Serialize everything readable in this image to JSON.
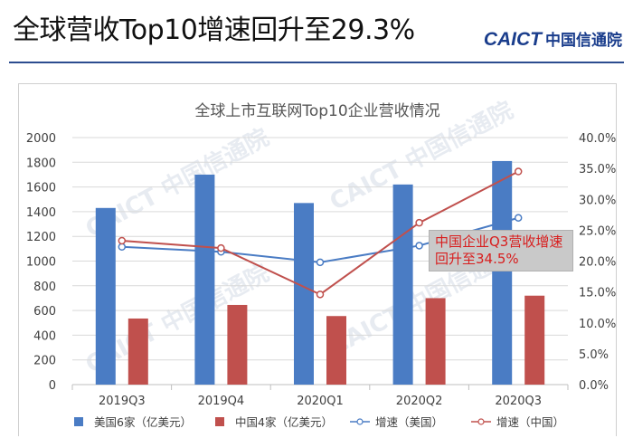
{
  "header": {
    "title": "全球营收Top10增速回升至29.3%",
    "logo_mark": "CAICT",
    "logo_name": "中国信通院",
    "brand_color": "#1a3d8c"
  },
  "watermark": {
    "text": "CAICT 中国信通院"
  },
  "callout": {
    "text": "中国企业Q3营收增速回升至34.5%"
  },
  "chart_data": {
    "type": "bar",
    "title": "全球上市互联网Top10企业营收情况",
    "categories": [
      "2019Q3",
      "2019Q4",
      "2020Q1",
      "2020Q2",
      "2020Q3"
    ],
    "series": [
      {
        "name": "美国6家（亿美元）",
        "kind": "bar",
        "axis": "left",
        "color": "#4a7cc4",
        "values": [
          1430,
          1700,
          1470,
          1620,
          1810
        ]
      },
      {
        "name": "中国4家（亿美元）",
        "kind": "bar",
        "axis": "left",
        "color": "#c0504d",
        "values": [
          535,
          645,
          555,
          700,
          720
        ]
      },
      {
        "name": "增速（美国）",
        "kind": "line",
        "axis": "right",
        "color": "#4a7cc4",
        "values": [
          22.3,
          21.5,
          19.8,
          22.5,
          27.0
        ]
      },
      {
        "name": "增速（中国）",
        "kind": "line",
        "axis": "right",
        "color": "#c0504d",
        "values": [
          23.3,
          22.1,
          14.6,
          26.2,
          34.5
        ]
      }
    ],
    "y_left": {
      "min": 0,
      "max": 2000,
      "ticks": [
        "0",
        "200",
        "400",
        "600",
        "800",
        "1000",
        "1200",
        "1400",
        "1600",
        "1800",
        "2000"
      ]
    },
    "y_right": {
      "min": 0,
      "max": 40,
      "ticks": [
        "0.0%",
        "5.0%",
        "10.0%",
        "15.0%",
        "20.0%",
        "25.0%",
        "30.0%",
        "35.0%",
        "40.0%"
      ]
    },
    "grid": true,
    "legend_position": "bottom"
  }
}
